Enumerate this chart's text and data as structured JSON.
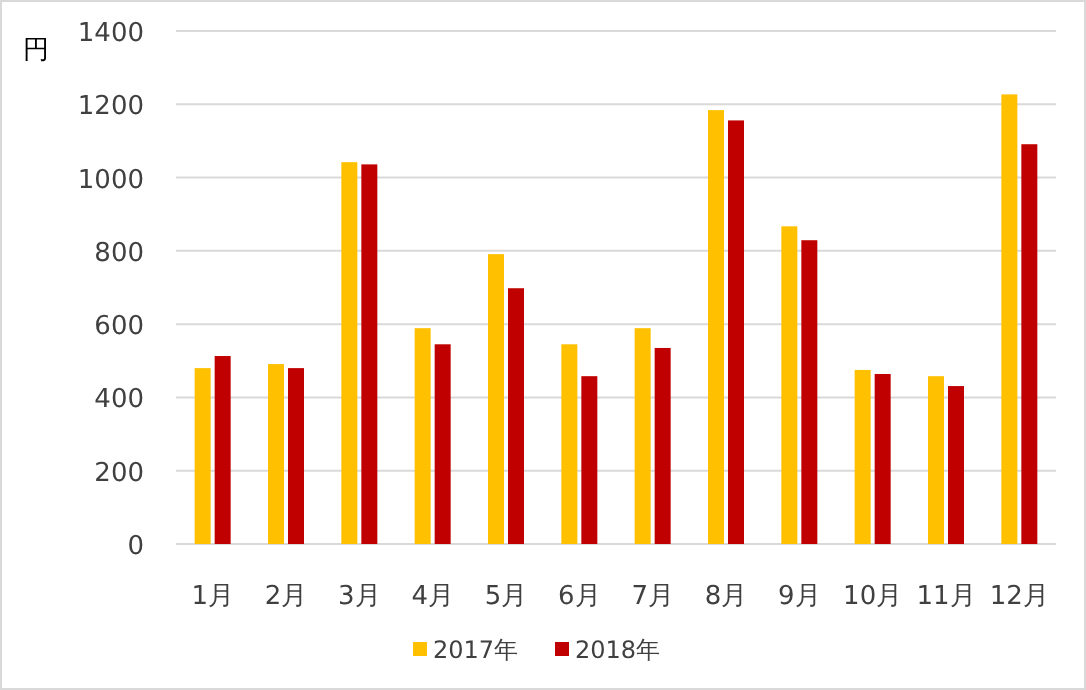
{
  "chart_data": {
    "type": "bar",
    "ylabel": "円",
    "categories": [
      "1月",
      "2月",
      "3月",
      "4月",
      "5月",
      "6月",
      "7月",
      "8月",
      "9月",
      "10月",
      "11月",
      "12月"
    ],
    "series": [
      {
        "name": "2017年",
        "color": "#ffc000",
        "values": [
          480,
          491,
          1042,
          589,
          791,
          545,
          589,
          1184,
          867,
          475,
          458,
          1227
        ]
      },
      {
        "name": "2018年",
        "color": "#c00000",
        "values": [
          513,
          480,
          1036,
          545,
          698,
          458,
          535,
          1156,
          829,
          464,
          431,
          1091
        ]
      }
    ],
    "ylim": [
      0,
      1400
    ],
    "yticks": [
      0,
      200,
      400,
      600,
      800,
      1000,
      1200,
      1400
    ],
    "grid": "y",
    "legend": "bottom"
  }
}
